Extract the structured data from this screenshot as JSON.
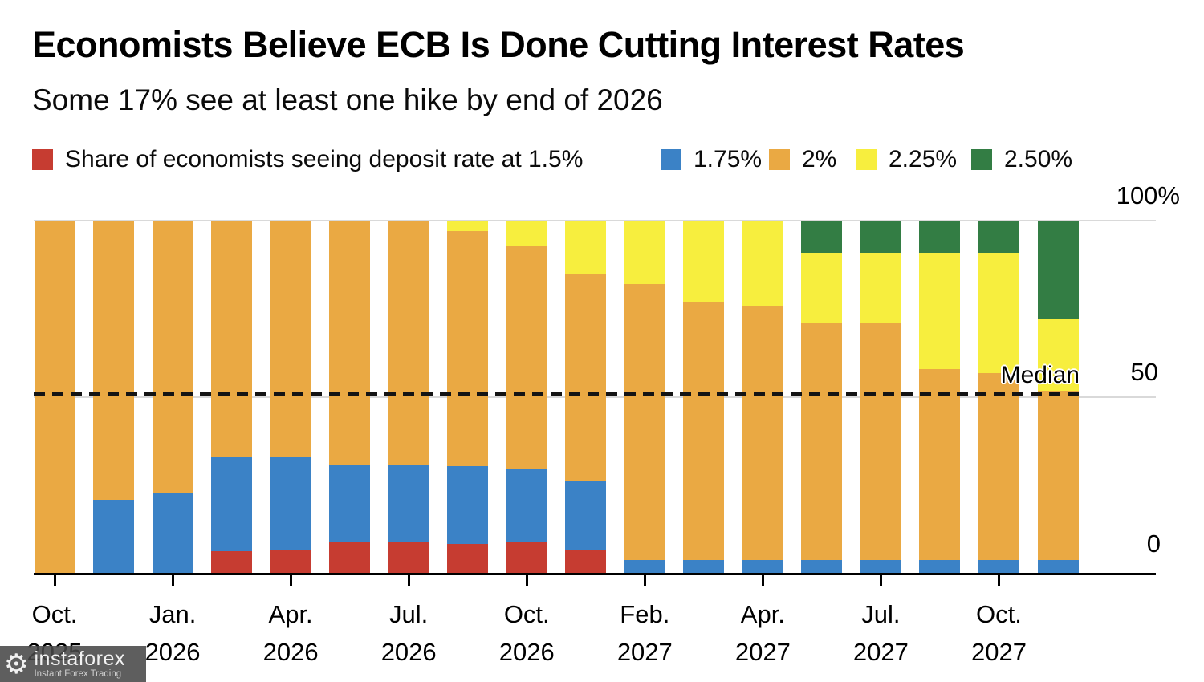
{
  "chart_data": {
    "type": "bar",
    "stacked": true,
    "title": "Economists Believe ECB Is Done Cutting Interest Rates",
    "subtitle": "Some 17% see at least one hike by end of 2026",
    "unit": "%",
    "ylim": [
      0,
      100
    ],
    "y_tick_labels": [
      "100%",
      "50",
      "0"
    ],
    "grid": "horizontal",
    "legend_position": "top",
    "median_label": "Median",
    "median_line_y": 50,
    "n_bars": 18,
    "series": [
      {
        "name": "Share of economists seeing deposit rate at 1.5%",
        "color": "#c63c31",
        "values": [
          0,
          0,
          0,
          6.5,
          7,
          9,
          9,
          8.5,
          9,
          7,
          0,
          0,
          0,
          0,
          0,
          0,
          0,
          0
        ]
      },
      {
        "name": "1.75%",
        "color": "#3b82c6",
        "values": [
          0,
          21,
          23,
          26.5,
          26,
          22,
          22,
          22,
          21,
          19.5,
          4,
          4,
          4,
          4,
          4,
          4,
          4,
          4
        ]
      },
      {
        "name": "2%",
        "color": "#eaa943",
        "values": [
          100,
          79,
          77,
          67,
          67,
          69,
          69,
          66.5,
          63,
          58.5,
          78,
          73,
          72,
          67,
          67,
          54,
          53,
          48
        ]
      },
      {
        "name": "2.25%",
        "color": "#f7ee3e",
        "values": [
          0,
          0,
          0,
          0,
          0,
          0,
          0,
          3,
          7,
          15,
          18,
          23,
          24,
          20,
          20,
          33,
          34,
          20
        ]
      },
      {
        "name": "2.50%",
        "color": "#337d44",
        "values": [
          0,
          0,
          0,
          0,
          0,
          0,
          0,
          0,
          0,
          0,
          0,
          0,
          0,
          9,
          9,
          9,
          9,
          28
        ]
      }
    ],
    "labeled_bar_indices": [
      0,
      2,
      4,
      6,
      8,
      10,
      12,
      14,
      16
    ],
    "x_tick_labels": [
      {
        "month": "Oct.",
        "year": "2025"
      },
      {
        "month": "Jan.",
        "year": "2026"
      },
      {
        "month": "Apr.",
        "year": "2026"
      },
      {
        "month": "Jul.",
        "year": "2026"
      },
      {
        "month": "Oct.",
        "year": "2026"
      },
      {
        "month": "Feb.",
        "year": "2027"
      },
      {
        "month": "Apr.",
        "year": "2027"
      },
      {
        "month": "Jul.",
        "year": "2027"
      },
      {
        "month": "Oct.",
        "year": "2027"
      }
    ]
  },
  "watermark": {
    "name": "instaforex",
    "tagline": "Instant Forex Trading"
  }
}
